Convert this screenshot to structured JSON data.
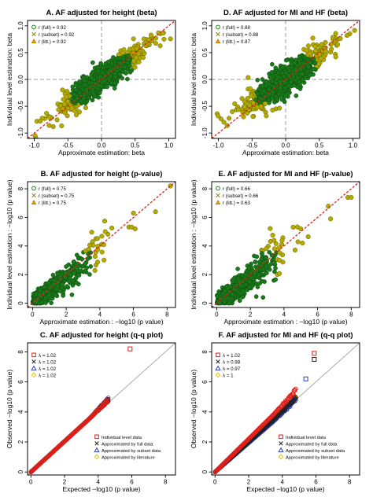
{
  "panels": [
    {
      "id": "A",
      "title": "A. AF adjusted for height (beta)",
      "type": "scatter",
      "xlabel": "Approximate estimation: beta",
      "ylabel": "Individual level estimation: beta",
      "xlim": [
        -1.1,
        1.1
      ],
      "ylim": [
        -1.1,
        1.1
      ],
      "xticks": [
        -1.0,
        -0.5,
        0.0,
        0.5,
        1.0
      ],
      "yticks": [
        -1.0,
        -0.5,
        0.0,
        0.5,
        1.0
      ],
      "xtick_labels": [
        "-1.0",
        "-0.5",
        "0.0",
        "0.5",
        "1.0"
      ],
      "ytick_labels": [
        "-1.0",
        "-0.5",
        "0.0",
        "0.5",
        "1.0"
      ],
      "zero_lines": true,
      "legend": [
        "r (full) = 0.92",
        "r (subset) = 0.92",
        "r (litt.) = 0.92"
      ],
      "legend_position": "top-left",
      "correlation": 0.92,
      "cloud_spread": 0.22,
      "fill_color": "#1a7a1a",
      "outlier_color": "#b8a800",
      "diag_color": "#e0201a"
    },
    {
      "id": "D",
      "title": "D. AF adjusted for MI and HF (beta)",
      "type": "scatter",
      "xlabel": "Approximate estimation: beta",
      "ylabel": "Individual level estimation: beta",
      "xlim": [
        -1.1,
        1.1
      ],
      "ylim": [
        -1.1,
        1.1
      ],
      "xticks": [
        -1.0,
        -0.5,
        0.0,
        0.5,
        1.0
      ],
      "yticks": [
        -1.0,
        -0.5,
        0.0,
        0.5,
        1.0
      ],
      "xtick_labels": [
        "-1.0",
        "-0.5",
        "0.0",
        "0.5",
        "1.0"
      ],
      "ytick_labels": [
        "-1.0",
        "-0.5",
        "0.0",
        "0.5",
        "1.0"
      ],
      "zero_lines": true,
      "legend": [
        "r (full) = 0.88",
        "r (subset) = 0.88",
        "r (litt.) = 0.87"
      ],
      "legend_position": "top-left",
      "correlation": 0.88,
      "cloud_spread": 0.28,
      "fill_color": "#1a7a1a",
      "outlier_color": "#b8a800",
      "diag_color": "#e0201a"
    },
    {
      "id": "B",
      "title": "B. AF adjusted for height (p-value)",
      "type": "scatter",
      "xlabel": "Approximate estimation : −log10 (p value)",
      "ylabel": "Individual level estimation : −log10 (p value)",
      "xlim": [
        -0.3,
        8.5
      ],
      "ylim": [
        -0.3,
        8.5
      ],
      "xticks": [
        0,
        2,
        4,
        6,
        8
      ],
      "yticks": [
        0,
        2,
        4,
        6,
        8
      ],
      "xtick_labels": [
        "0",
        "2",
        "4",
        "6",
        "8"
      ],
      "ytick_labels": [
        "0",
        "2",
        "4",
        "6",
        "8"
      ],
      "zero_lines": false,
      "legend": [
        "r (full) = 0.75",
        "r (subset) = 0.75",
        "r (litt.) = 0.75"
      ],
      "legend_position": "top-left",
      "correlation": 0.75,
      "extra_points": [
        [
          6.0,
          6.3
        ],
        [
          6.1,
          5.2
        ],
        [
          8.2,
          8.2
        ]
      ],
      "fill_color": "#1a7a1a",
      "outlier_color": "#b8a800",
      "diag_color": "#e0201a"
    },
    {
      "id": "E",
      "title": "E. AF adjusted for MI and HF (p-value)",
      "type": "scatter",
      "xlabel": "Approximate estimation : −log10 (p value)",
      "ylabel": "Individual level estimation : −log10 (p value)",
      "xlim": [
        -0.3,
        8.5
      ],
      "ylim": [
        -0.3,
        8.5
      ],
      "xticks": [
        0,
        2,
        4,
        6,
        8
      ],
      "yticks": [
        0,
        2,
        4,
        6,
        8
      ],
      "xtick_labels": [
        "0",
        "2",
        "4",
        "6",
        "8"
      ],
      "ytick_labels": [
        "0",
        "2",
        "4",
        "6",
        "8"
      ],
      "zero_lines": false,
      "legend": [
        "r (full) = 0.66",
        "r (subset) = 0.66",
        "r (litt.) = 0.63"
      ],
      "legend_position": "top-left",
      "correlation": 0.66,
      "extra_points": [
        [
          7.8,
          7.4
        ],
        [
          8.0,
          7.4
        ],
        [
          5.0,
          5.2
        ],
        [
          5.1,
          4.2
        ]
      ],
      "fill_color": "#1a7a1a",
      "outlier_color": "#b8a800",
      "diag_color": "#e0201a"
    },
    {
      "id": "C",
      "title": "C. AF adjusted for height (q-q plot)",
      "type": "qq",
      "xlabel": "Expected −log10 (p value)",
      "ylabel": "Observed −log10 (p value)",
      "xlim": [
        -0.2,
        8.6
      ],
      "ylim": [
        -0.2,
        8.6
      ],
      "xticks": [
        0,
        2,
        4,
        6,
        8
      ],
      "yticks": [
        0,
        2,
        4,
        6,
        8
      ],
      "xtick_labels": [
        "0",
        "2",
        "4",
        "6",
        "8"
      ],
      "ytick_labels": [
        "0",
        "2",
        "4",
        "6",
        "8"
      ],
      "lambda_legend": [
        "λ = 1.02",
        "λ = 1.02",
        "λ = 1.02",
        "λ = 1.02"
      ],
      "series": [
        {
          "name": "Individual level data",
          "color": "#e0201a",
          "max_x": 4.6,
          "slope": 1.02
        },
        {
          "name": "Approximated by full data",
          "color": "#222222",
          "max_x": 4.6,
          "slope": 1.02
        },
        {
          "name": "Approximated by subset data",
          "color": "#2a3fc0",
          "max_x": 4.6,
          "slope": 1.02
        },
        {
          "name": "Approximated by literature",
          "color": "#e8c000",
          "max_x": 4.6,
          "slope": 1.02
        }
      ],
      "top_points": [
        [
          5.9,
          8.2
        ]
      ],
      "legend_position": "bottom-right"
    },
    {
      "id": "F",
      "title": "F. AF adjusted for MI and HF (q-q plot)",
      "type": "qq",
      "xlabel": "Expected −log10 (p value)",
      "ylabel": "Observed −log10 (p value)",
      "xlim": [
        -0.2,
        8.6
      ],
      "ylim": [
        -0.2,
        8.6
      ],
      "xticks": [
        0,
        2,
        4,
        6,
        8
      ],
      "yticks": [
        0,
        2,
        4,
        6,
        8
      ],
      "xtick_labels": [
        "0",
        "2",
        "4",
        "6",
        "8"
      ],
      "ytick_labels": [
        "0",
        "2",
        "4",
        "6",
        "8"
      ],
      "lambda_legend": [
        "λ = 1.02",
        "λ = 0.98",
        "λ = 0.97",
        "λ = 1"
      ],
      "series": [
        {
          "name": "Individual level data",
          "color": "#e0201a",
          "max_x": 4.8,
          "slope": 1.1
        },
        {
          "name": "Approximated by full data",
          "color": "#222222",
          "max_x": 4.8,
          "slope": 1.0
        },
        {
          "name": "Approximated by subset data",
          "color": "#2a3fc0",
          "max_x": 4.8,
          "slope": 0.97
        },
        {
          "name": "Approximated by literature",
          "color": "#e8c000",
          "max_x": 4.8,
          "slope": 1.0
        }
      ],
      "top_points": [
        [
          5.9,
          7.9
        ],
        [
          5.9,
          7.5
        ],
        [
          5.4,
          6.2
        ]
      ],
      "legend_position": "bottom-right"
    }
  ]
}
